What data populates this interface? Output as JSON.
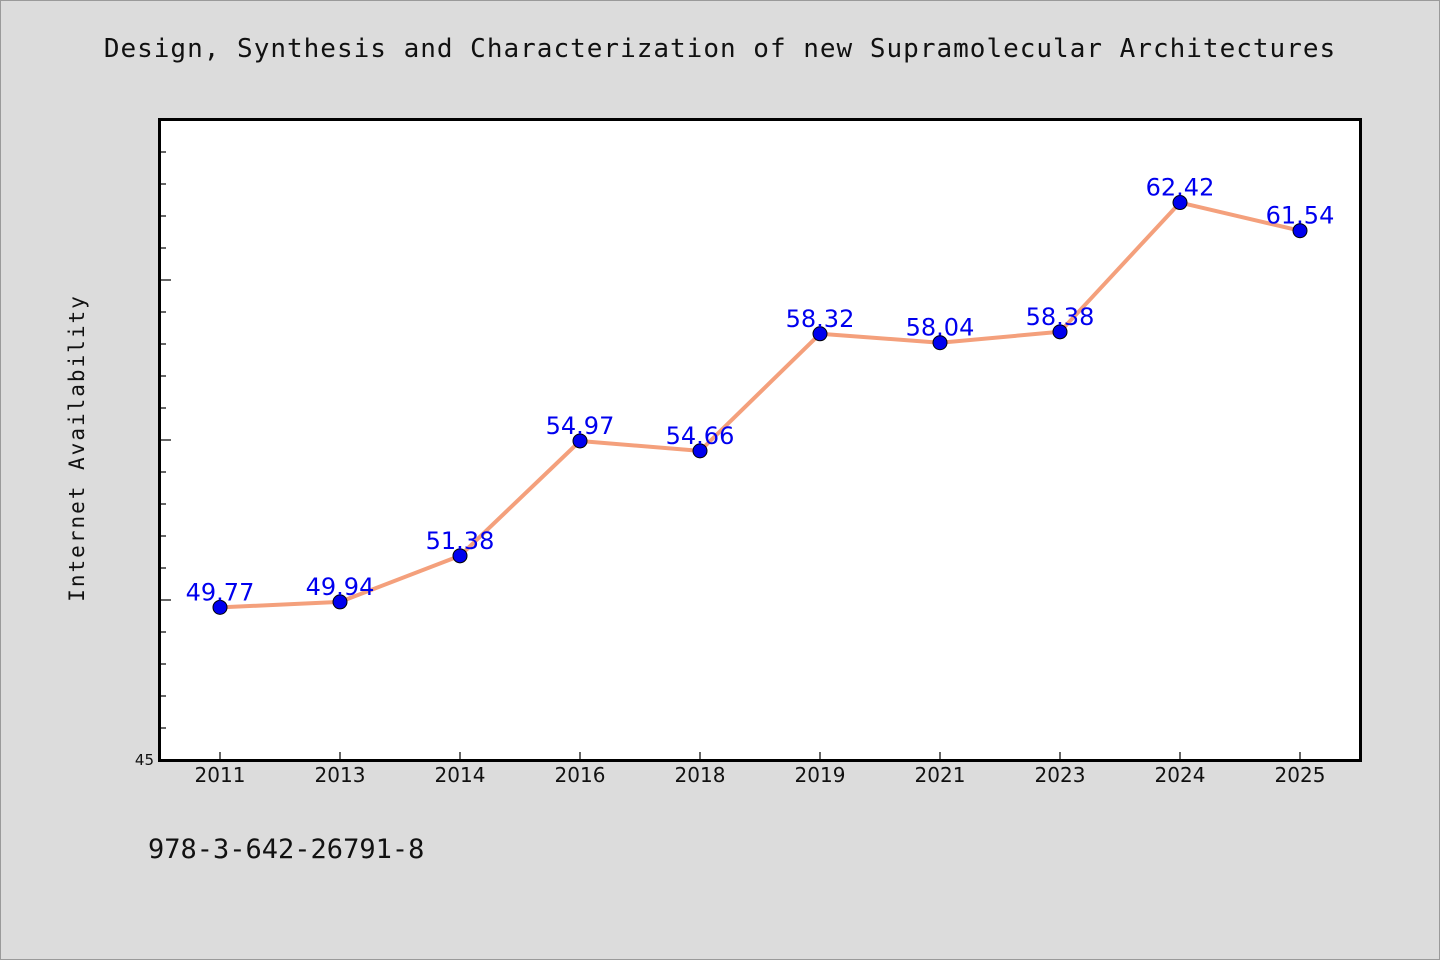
{
  "chart_data": {
    "type": "line",
    "title": "Design, Synthesis and Characterization of new Supramolecular Architectures",
    "xlabel": "",
    "ylabel": "Internet Availability",
    "categories": [
      "2011",
      "2013",
      "2014",
      "2016",
      "2018",
      "2019",
      "2021",
      "2023",
      "2024",
      "2025"
    ],
    "series": [
      {
        "values": [
          49.77,
          49.94,
          51.38,
          54.97,
          54.66,
          58.32,
          58.04,
          58.38,
          62.42,
          61.54
        ]
      }
    ],
    "data_labels": [
      "49.77",
      "49.94",
      "51.38",
      "54.97",
      "54.66",
      "58.32",
      "58.04",
      "58.38",
      "62.42",
      "61.54"
    ],
    "ylim": [
      45,
      65
    ],
    "y_tick_label": "45",
    "grid": false,
    "legend": "none",
    "colors": {
      "line": "#f4a07c",
      "marker": "#0000ee",
      "data_label": "#0000ee",
      "plot_background": "#ffffff",
      "page_background": "#dcdcdc"
    }
  },
  "footer": {
    "code": "978-3-642-26791-8"
  }
}
